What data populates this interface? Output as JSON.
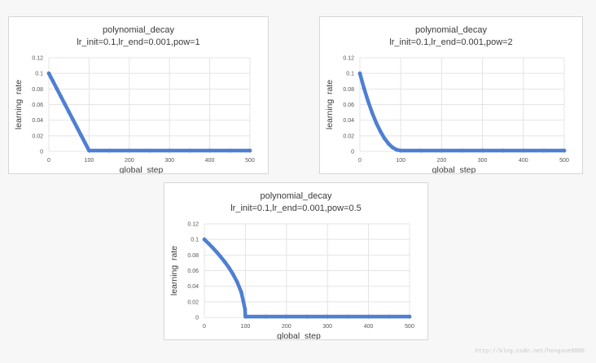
{
  "colors": {
    "series": "#4f7fd2",
    "grid": "#e4e4e4",
    "text": "#3a3a3a",
    "tick": "#555555"
  },
  "watermark": "http://blog.csdn.net/hongxue8888",
  "chart_data": [
    {
      "type": "scatter",
      "title": "polynomial_decay",
      "subtitle": "lr_init=0.1,lr_end=0.001,pow=1",
      "xlabel": "global  step",
      "ylabel": "learning  rate",
      "xlim": [
        0,
        500
      ],
      "ylim": [
        0,
        0.12
      ],
      "xticks": [
        0,
        100,
        200,
        300,
        400,
        500
      ],
      "yticks": [
        0,
        0.02,
        0.04,
        0.06,
        0.08,
        0.1,
        0.12
      ],
      "grid": true,
      "series": [
        {
          "x": [
            0,
            10,
            20,
            30,
            40,
            50,
            60,
            70,
            80,
            90,
            100,
            150,
            200,
            250,
            300,
            350,
            400,
            450,
            500
          ],
          "y": [
            0.1,
            0.0901,
            0.0802,
            0.0703,
            0.0604,
            0.0505,
            0.0406,
            0.0307,
            0.0208,
            0.0109,
            0.001,
            0.001,
            0.001,
            0.001,
            0.001,
            0.001,
            0.001,
            0.001,
            0.001
          ]
        }
      ]
    },
    {
      "type": "scatter",
      "title": "polynomial_decay",
      "subtitle": "lr_init=0.1,lr_end=0.001,pow=2",
      "xlabel": "global  step",
      "ylabel": "learning  rate",
      "xlim": [
        0,
        500
      ],
      "ylim": [
        0,
        0.12
      ],
      "xticks": [
        0,
        100,
        200,
        300,
        400,
        500
      ],
      "yticks": [
        0,
        0.02,
        0.04,
        0.06,
        0.08,
        0.1,
        0.12
      ],
      "grid": true,
      "series": [
        {
          "x": [
            0,
            10,
            20,
            30,
            40,
            50,
            60,
            70,
            80,
            90,
            100,
            150,
            200,
            250,
            300,
            350,
            400,
            450,
            500
          ],
          "y": [
            0.1,
            0.0812,
            0.0644,
            0.0495,
            0.0366,
            0.0258,
            0.0168,
            0.0099,
            0.005,
            0.002,
            0.001,
            0.001,
            0.001,
            0.001,
            0.001,
            0.001,
            0.001,
            0.001,
            0.001
          ]
        }
      ]
    },
    {
      "type": "scatter",
      "title": "polynomial_decay",
      "subtitle": "lr_init=0.1,lr_end=0.001,pow=0.5",
      "xlabel": "global  step",
      "ylabel": "learning  rate",
      "xlim": [
        0,
        500
      ],
      "ylim": [
        0,
        0.12
      ],
      "xticks": [
        0,
        100,
        200,
        300,
        400,
        500
      ],
      "yticks": [
        0,
        0.02,
        0.04,
        0.06,
        0.08,
        0.1,
        0.12
      ],
      "grid": true,
      "series": [
        {
          "x": [
            0,
            10,
            20,
            30,
            40,
            50,
            60,
            70,
            80,
            90,
            99,
            100,
            150,
            200,
            250,
            300,
            350,
            400,
            450,
            500
          ],
          "y": [
            0.1,
            0.0949,
            0.0895,
            0.0838,
            0.0776,
            0.071,
            0.0637,
            0.0552,
            0.0453,
            0.0323,
            0.0109,
            0.001,
            0.001,
            0.001,
            0.001,
            0.001,
            0.001,
            0.001,
            0.001,
            0.001
          ]
        }
      ]
    }
  ]
}
